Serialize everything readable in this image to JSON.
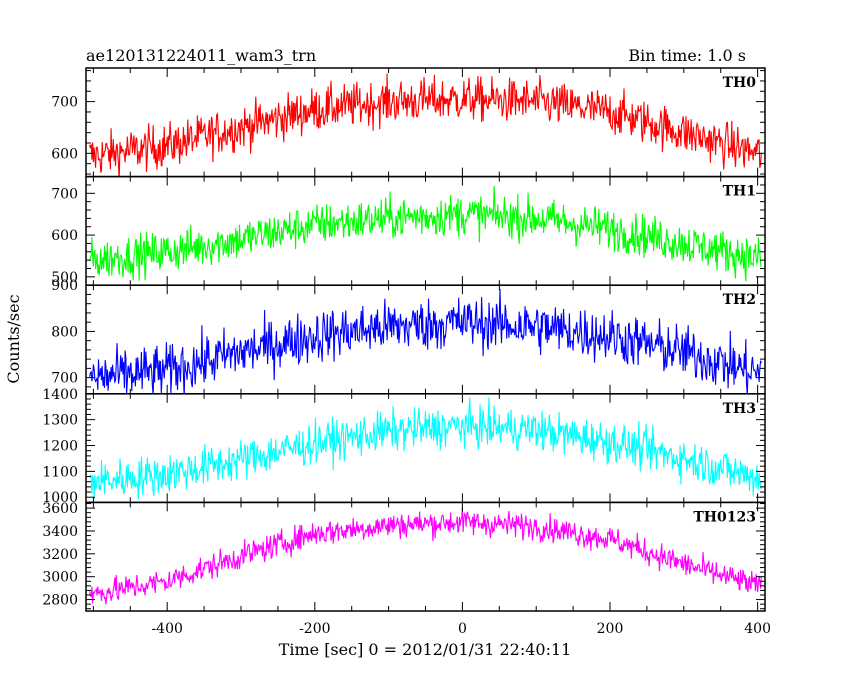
{
  "chart_data": {
    "type": "line",
    "title": "ae120131224011_wam3_trn",
    "subtitle": "Bin time: 1.0 s",
    "xlabel": "Time [sec] 0 = 2012/01/31 22:40:11",
    "ylabel": "Counts/sec",
    "xlim": [
      -510,
      410
    ],
    "x_ticks": [
      -400,
      -200,
      0,
      200,
      400
    ],
    "bin_time": 1.0,
    "panels": [
      {
        "name": "TH0",
        "color": "#ff0000",
        "ylim": [
          555,
          765
        ],
        "y_ticks": [
          600,
          700
        ],
        "edge_level": 595,
        "peak_level": 705,
        "noise": 30,
        "x": [
          -500,
          -400,
          -300,
          -200,
          -100,
          0,
          100,
          200,
          300,
          400
        ],
        "y": [
          595,
          615,
          650,
          685,
          700,
          705,
          700,
          680,
          640,
          600
        ]
      },
      {
        "name": "TH1",
        "color": "#00ff00",
        "ylim": [
          480,
          740
        ],
        "y_ticks": [
          500,
          600,
          700
        ],
        "edge_level": 540,
        "peak_level": 650,
        "noise": 35,
        "x": [
          -500,
          -400,
          -300,
          -200,
          -100,
          0,
          100,
          200,
          300,
          400
        ],
        "y": [
          540,
          560,
          590,
          625,
          640,
          650,
          640,
          615,
          580,
          545
        ]
      },
      {
        "name": "TH2",
        "color": "#0000ff",
        "ylim": [
          665,
          900
        ],
        "y_ticks": [
          700,
          800,
          900
        ],
        "edge_level": 700,
        "peak_level": 820,
        "noise": 40,
        "x": [
          -500,
          -400,
          -300,
          -200,
          -100,
          0,
          100,
          200,
          300,
          400
        ],
        "y": [
          700,
          715,
          755,
          790,
          810,
          820,
          810,
          790,
          755,
          710
        ]
      },
      {
        "name": "TH3",
        "color": "#00ffff",
        "ylim": [
          980,
          1400
        ],
        "y_ticks": [
          1000,
          1100,
          1200,
          1300,
          1400
        ],
        "edge_level": 1060,
        "peak_level": 1275,
        "noise": 55,
        "x": [
          -500,
          -400,
          -300,
          -200,
          -100,
          0,
          100,
          200,
          300,
          400
        ],
        "y": [
          1060,
          1090,
          1145,
          1210,
          1255,
          1275,
          1260,
          1215,
          1150,
          1075
        ]
      },
      {
        "name": "TH0123",
        "color": "#ff00ff",
        "ylim": [
          2700,
          3650
        ],
        "y_ticks": [
          2800,
          3000,
          3200,
          3400,
          3600
        ],
        "edge_level": 2850,
        "peak_level": 3480,
        "noise": 80,
        "x": [
          -500,
          -400,
          -300,
          -200,
          -100,
          0,
          100,
          200,
          300,
          400
        ],
        "y": [
          2850,
          2960,
          3180,
          3380,
          3450,
          3480,
          3440,
          3330,
          3110,
          2920
        ]
      }
    ]
  }
}
